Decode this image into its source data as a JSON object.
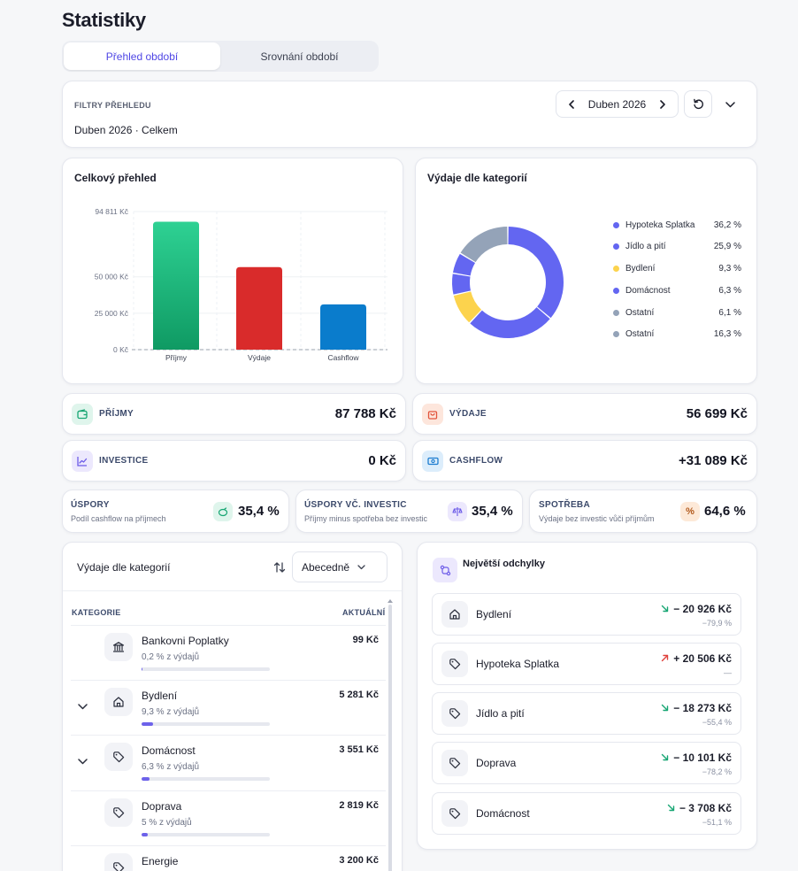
{
  "page": {
    "title": "Statistiky"
  },
  "tabs": [
    {
      "label": "Přehled období"
    },
    {
      "label": "Srovnání období"
    }
  ],
  "filters": {
    "heading": "FILTRY PŘEHLEDU",
    "summary": "Duben 2026 · Celkem",
    "period": "Duben 2026"
  },
  "overview": {
    "title": "Celkový přehled",
    "chart_data": {
      "type": "bar",
      "categories": [
        "Příjmy",
        "Výdaje",
        "Cashflow"
      ],
      "values": [
        87788,
        56699,
        31089
      ],
      "yticks": [
        {
          "value": 0,
          "label": "0 Kč"
        },
        {
          "value": 25000,
          "label": "25 000 Kč"
        },
        {
          "value": 50000,
          "label": "50 000 Kč"
        },
        {
          "value": 94811,
          "label": "94 811 Kč"
        }
      ],
      "ylim": [
        0,
        94811
      ],
      "colors": [
        "#19b87a",
        "#d92b2b",
        "#0a7ccc"
      ]
    }
  },
  "categories_chart": {
    "title": "Výdaje dle kategorií",
    "chart_data": {
      "type": "pie",
      "donut": true,
      "slices": [
        {
          "name": "Hypoteka Splatka",
          "label": "36,2 %",
          "value": 36.2,
          "color": "#6366f1"
        },
        {
          "name": "Jídlo a pití",
          "label": "25,9 %",
          "value": 25.9,
          "color": "#6366f1"
        },
        {
          "name": "Bydlení",
          "label": "9,3 %",
          "value": 9.3,
          "color": "#fcd34d"
        },
        {
          "name": "Domácnost",
          "label": "6,3 %",
          "value": 6.3,
          "color": "#6366f1"
        },
        {
          "name": "Ostatní",
          "label": "6,1 %",
          "value": 6.1,
          "color": "#6366f1"
        },
        {
          "name": "Ostatní",
          "label": "16,3 %",
          "value": 16.3,
          "color": "#94a3b8"
        }
      ],
      "legend": [
        {
          "name": "Hypoteka Splatka",
          "label": "36,2 %",
          "color": "#6366f1"
        },
        {
          "name": "Jídlo a pití",
          "label": "25,9 %",
          "color": "#6366f1"
        },
        {
          "name": "Bydlení",
          "label": "9,3 %",
          "color": "#fcd34d"
        },
        {
          "name": "Domácnost",
          "label": "6,3 %",
          "color": "#6366f1"
        },
        {
          "name": "Ostatní",
          "label": "6,1 %",
          "color": "#94a3b8"
        },
        {
          "name": "Ostatní",
          "label": "16,3 %",
          "color": "#94a3b8"
        }
      ]
    }
  },
  "metrics": {
    "income": {
      "label": "PŘÍJMY",
      "value": "87 788 Kč",
      "icon": "wallet-icon"
    },
    "expenses": {
      "label": "VÝDAJE",
      "value": "56 699 Kč",
      "icon": "shopping-bag-icon"
    },
    "investments": {
      "label": "INVESTICE",
      "value": "0 Kč",
      "icon": "chart-line-icon"
    },
    "cashflow": {
      "label": "CASHFLOW",
      "value": "+31 089 Kč",
      "icon": "cash-icon"
    }
  },
  "ratios": {
    "savings": {
      "title": "ÚSPORY",
      "sub": "Podíl cashflow na příjmech",
      "value": "35,4 %",
      "icon": "piggy-bank-icon"
    },
    "savings_inv": {
      "title": "ÚSPORY VČ. INVESTIC",
      "sub": "Příjmy minus spotřeba bez investic",
      "value": "35,4 %",
      "icon": "scale-icon"
    },
    "consumption": {
      "title": "SPOTŘEBA",
      "sub": "Výdaje bez investic vůči příjmům",
      "value": "64,6 %",
      "icon": "percent-icon"
    }
  },
  "category_list": {
    "title": "Výdaje dle kategorií",
    "sort_label": "Abecedně",
    "col_category": "KATEGORIE",
    "col_current": "AKTUÁLNÍ",
    "rows": [
      {
        "name": "Bankovni Poplatky",
        "sub": "0,2 % z výdajů",
        "value": "99 Kč",
        "share": 0.002,
        "icon": "bank-icon",
        "expandable": false
      },
      {
        "name": "Bydlení",
        "sub": "9,3 % z výdajů",
        "value": "5 281 Kč",
        "share": 0.093,
        "icon": "home-icon",
        "expandable": true
      },
      {
        "name": "Domácnost",
        "sub": "6,3 % z výdajů",
        "value": "3 551 Kč",
        "share": 0.063,
        "icon": "tag-icon",
        "expandable": true
      },
      {
        "name": "Doprava",
        "sub": "5 % z výdajů",
        "value": "2 819 Kč",
        "share": 0.05,
        "icon": "tag-icon",
        "expandable": false
      },
      {
        "name": "Energie",
        "sub": "",
        "value": "3 200 Kč",
        "share": 0.056,
        "icon": "tag-icon",
        "expandable": false
      }
    ]
  },
  "deviations": {
    "title": "Největší odchylky",
    "rows": [
      {
        "name": "Bydlení",
        "amount": "− 20 926 Kč",
        "pct": "−79,9 %",
        "direction": "down",
        "icon": "home-icon"
      },
      {
        "name": "Hypoteka Splatka",
        "amount": "+ 20 506 Kč",
        "pct": "—",
        "direction": "up",
        "icon": "tag-icon"
      },
      {
        "name": "Jídlo a pití",
        "amount": "− 18 273 Kč",
        "pct": "−55,4 %",
        "direction": "down",
        "icon": "tag-icon"
      },
      {
        "name": "Doprava",
        "amount": "− 10 101 Kč",
        "pct": "−78,2 %",
        "direction": "down",
        "icon": "tag-icon"
      },
      {
        "name": "Domácnost",
        "amount": "− 3 708 Kč",
        "pct": "−51,1 %",
        "direction": "down",
        "icon": "tag-icon"
      }
    ]
  }
}
